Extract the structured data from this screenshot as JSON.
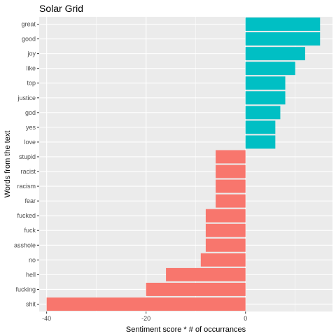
{
  "chart_data": {
    "type": "bar",
    "orientation": "horizontal",
    "title": "Solar Grid",
    "xlabel": "Sentiment score * # of occurrances",
    "ylabel": "Words from the text",
    "xlim": [
      -41.5,
      17.5
    ],
    "x_ticks": [
      -40,
      -20,
      0
    ],
    "x_tick_labels": [
      "-40",
      "-20",
      "0"
    ],
    "grid": true,
    "legend": "none",
    "colors": {
      "positive": "#00BFC4",
      "negative": "#F8766D",
      "panel": "#EBEBEB",
      "grid": "#FFFFFF"
    },
    "categories": [
      "great",
      "good",
      "joy",
      "like",
      "top",
      "justice",
      "god",
      "yes",
      "love",
      "stupid",
      "racist",
      "racism",
      "fear",
      "fucked",
      "fuck",
      "asshole",
      "no",
      "hell",
      "fucking",
      "shit"
    ],
    "values": [
      15,
      15,
      12,
      10,
      8,
      8,
      7,
      6,
      6,
      -6,
      -6,
      -6,
      -6,
      -8,
      -8,
      -8,
      -9,
      -16,
      -20,
      -40
    ]
  }
}
